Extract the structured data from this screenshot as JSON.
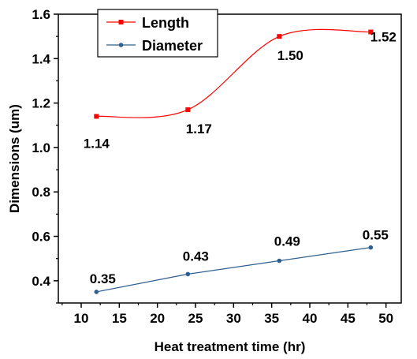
{
  "chart_data": {
    "type": "line",
    "title": "",
    "xlabel": "Heat treatment time (hr)",
    "ylabel": "Dimensions (um)",
    "xlim": [
      7,
      52
    ],
    "ylim": [
      0.3,
      1.6
    ],
    "xticks": [
      10,
      15,
      20,
      25,
      30,
      35,
      40,
      45,
      50
    ],
    "yticks": [
      0.4,
      0.6,
      0.8,
      1.0,
      1.2,
      1.4,
      1.6
    ],
    "xtick_labels": [
      "10",
      "15",
      "20",
      "25",
      "30",
      "35",
      "40",
      "45",
      "50"
    ],
    "ytick_labels": [
      "0.4",
      "0.6",
      "0.8",
      "1.0",
      "1.2",
      "1.4",
      "1.6"
    ],
    "grid": false,
    "legend_position": "top-left",
    "series": [
      {
        "name": "Length",
        "color": "#ff0000",
        "marker": "square",
        "smooth": true,
        "x": [
          12,
          24,
          36,
          48
        ],
        "y": [
          1.14,
          1.17,
          1.5,
          1.52
        ],
        "labels": [
          "1.14",
          "1.17",
          "1.50",
          "1.52"
        ]
      },
      {
        "name": "Diameter",
        "color": "#2f5f8f",
        "marker": "circle",
        "smooth": false,
        "x": [
          12,
          24,
          36,
          48
        ],
        "y": [
          0.35,
          0.43,
          0.49,
          0.55
        ],
        "labels": [
          "0.35",
          "0.43",
          "0.49",
          "0.55"
        ]
      }
    ]
  }
}
